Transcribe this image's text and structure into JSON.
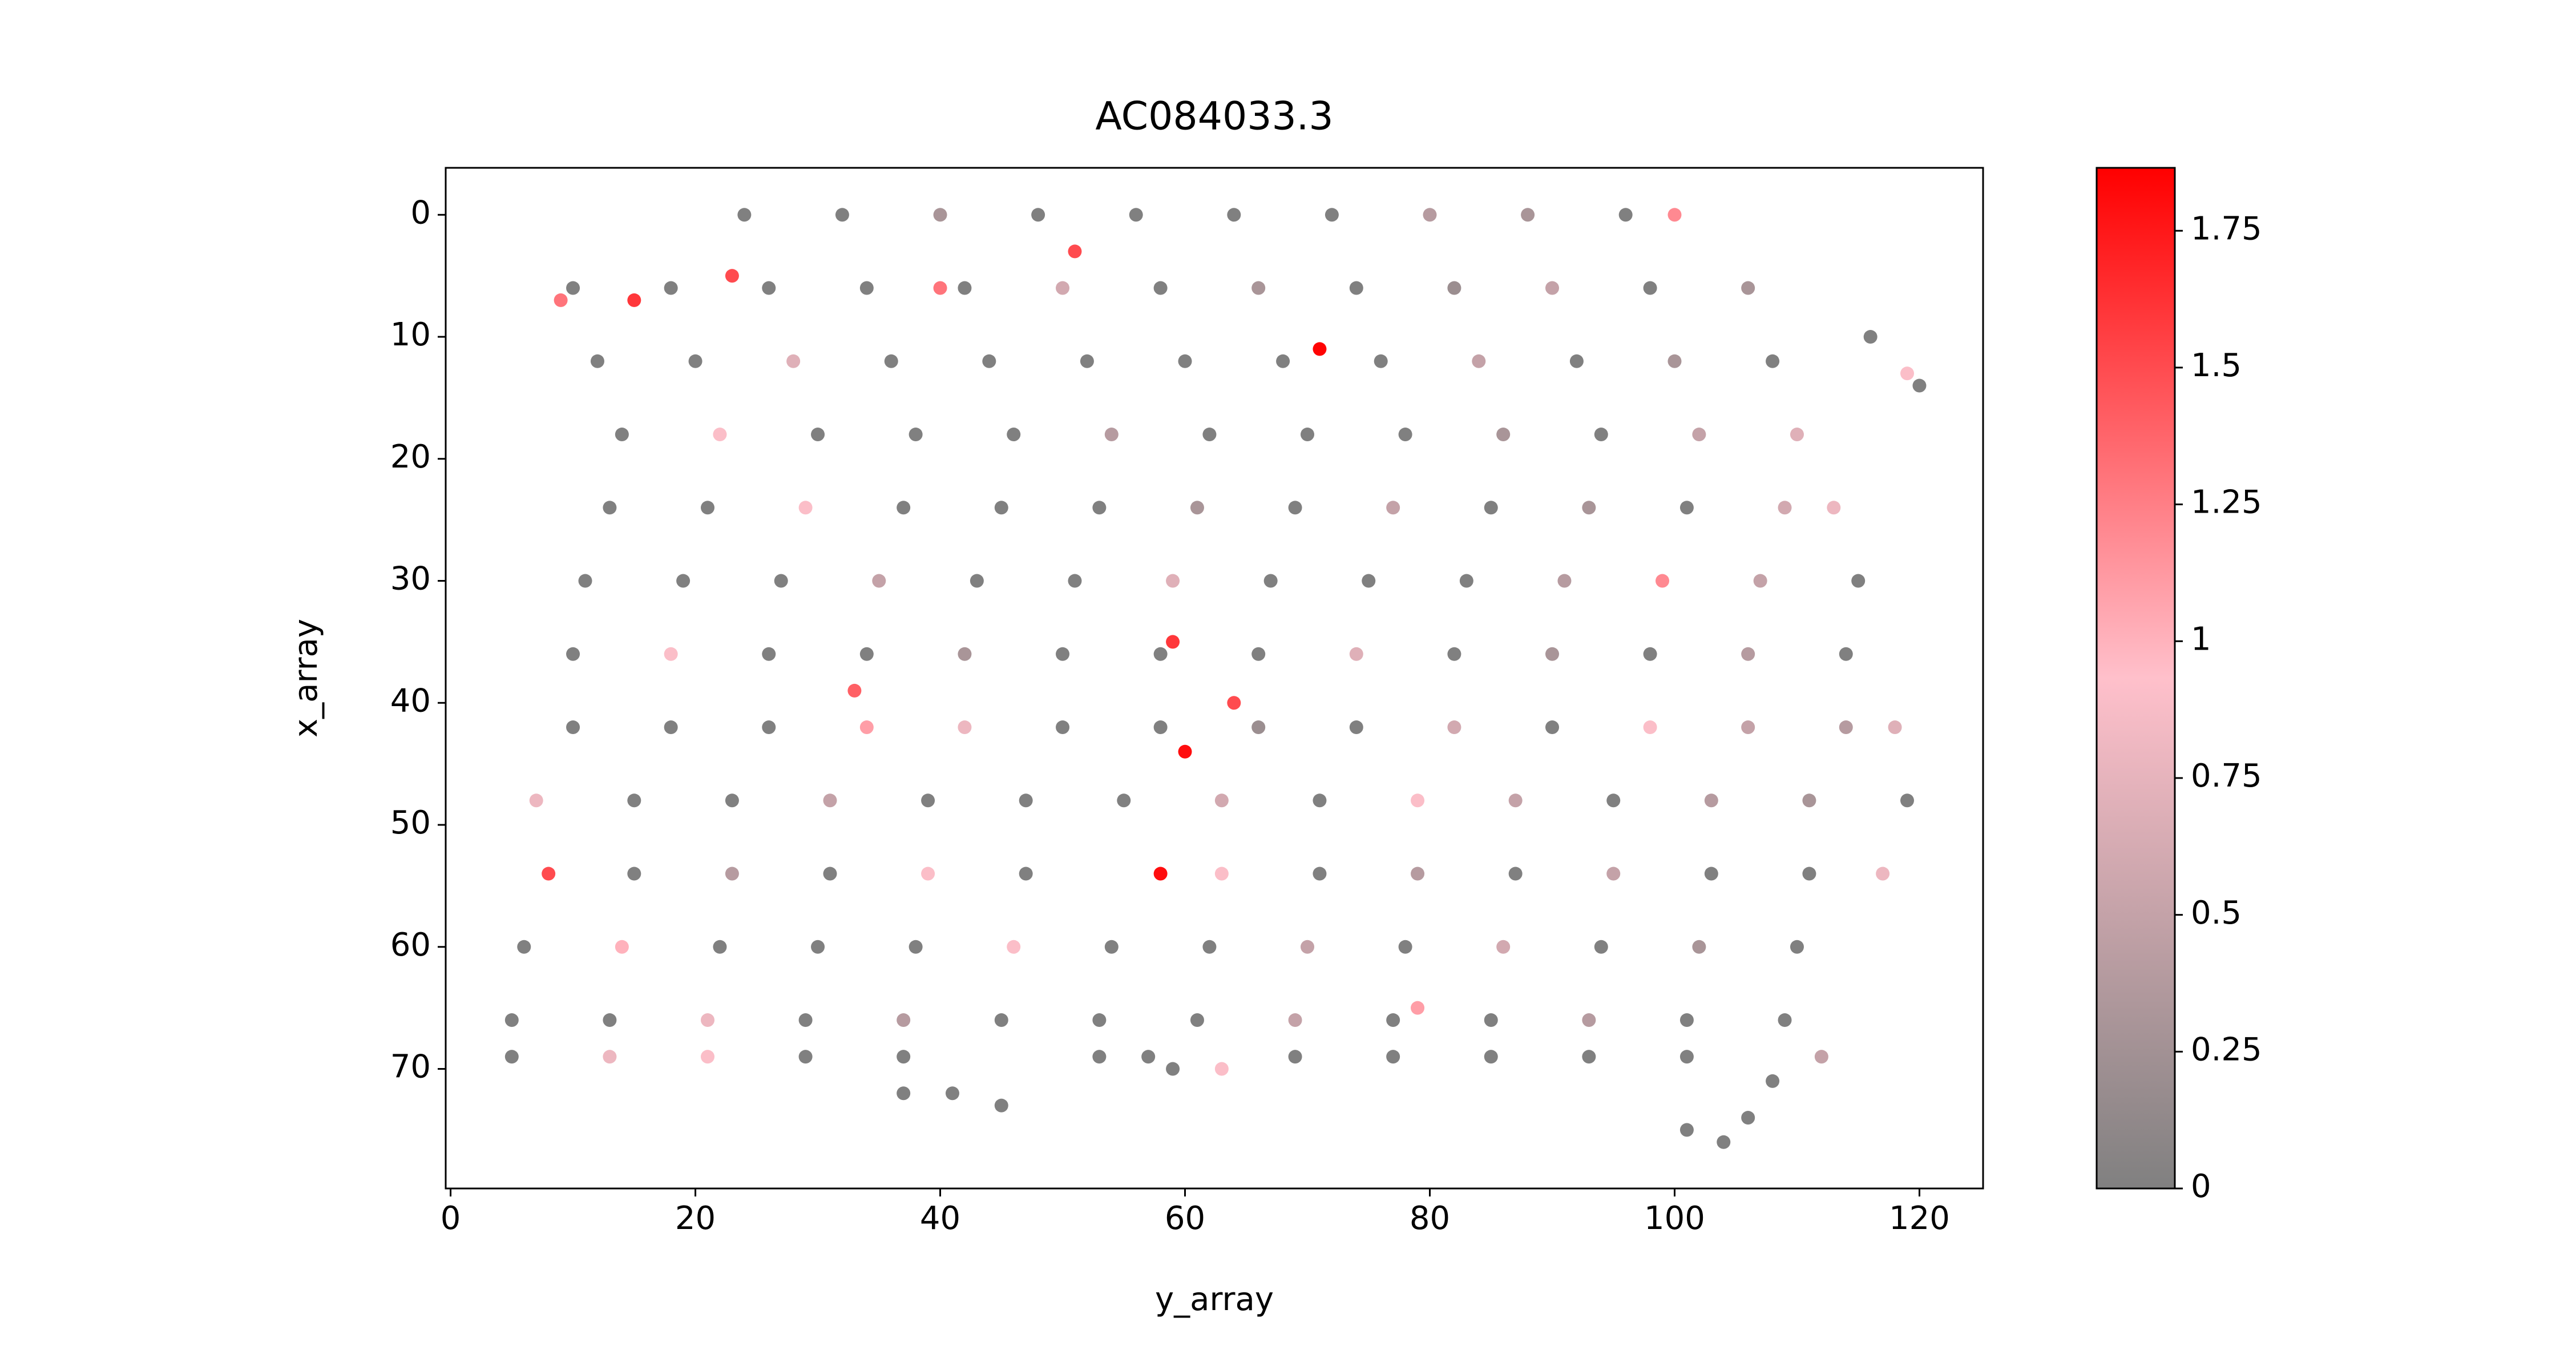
{
  "chart_data": {
    "type": "scatter",
    "title": "AC084033.3",
    "xlabel": "y_array",
    "ylabel": "x_array",
    "xlim": [
      -0.4,
      125.2
    ],
    "xticks": [
      0,
      20,
      40,
      60,
      80,
      100,
      120
    ],
    "ylim": [
      79.8,
      -3.85
    ],
    "yticks": [
      0,
      10,
      20,
      30,
      40,
      50,
      60,
      70
    ],
    "clim": [
      0,
      1.865
    ],
    "cticks": [
      0,
      0.25,
      0.5,
      0.75,
      1,
      1.25,
      1.5,
      1.75
    ],
    "colormap": [
      "#808080",
      "#ffc0cb",
      "#ff0000"
    ],
    "x": [
      24,
      32,
      40,
      48,
      56,
      64,
      72,
      80,
      88,
      96,
      100,
      51,
      23,
      10,
      18,
      26,
      34,
      42,
      50,
      58,
      66,
      74,
      82,
      90,
      98,
      106,
      40,
      9,
      15,
      71,
      116,
      12,
      20,
      28,
      36,
      44,
      52,
      60,
      68,
      76,
      84,
      92,
      100,
      108,
      119,
      120,
      14,
      22,
      30,
      38,
      46,
      54,
      62,
      70,
      78,
      86,
      94,
      102,
      110,
      13,
      21,
      29,
      37,
      45,
      53,
      61,
      69,
      77,
      85,
      93,
      101,
      109,
      113,
      11,
      19,
      27,
      35,
      43,
      51,
      59,
      67,
      75,
      83,
      91,
      99,
      107,
      115,
      59,
      10,
      18,
      26,
      34,
      42,
      50,
      58,
      66,
      74,
      82,
      90,
      98,
      106,
      114,
      33,
      64,
      10,
      18,
      26,
      34,
      42,
      50,
      58,
      66,
      74,
      82,
      90,
      98,
      106,
      114,
      118,
      60,
      7,
      15,
      23,
      31,
      39,
      47,
      55,
      63,
      71,
      79,
      87,
      95,
      103,
      111,
      119,
      8,
      15,
      23,
      31,
      39,
      47,
      58,
      63,
      71,
      79,
      87,
      95,
      103,
      111,
      117,
      6,
      14,
      22,
      30,
      38,
      46,
      54,
      62,
      70,
      78,
      86,
      94,
      102,
      110,
      79,
      5,
      13,
      21,
      29,
      37,
      45,
      53,
      61,
      69,
      77,
      85,
      93,
      101,
      109,
      5,
      13,
      21,
      29,
      37,
      53,
      57,
      69,
      77,
      85,
      93,
      101,
      112,
      59,
      63,
      108,
      37,
      41,
      45,
      106,
      101,
      104
    ],
    "y": [
      0,
      0,
      0,
      0,
      0,
      0,
      0,
      0,
      0,
      0,
      0,
      3,
      5,
      6,
      6,
      6,
      6,
      6,
      6,
      6,
      6,
      6,
      6,
      6,
      6,
      6,
      6,
      7,
      7,
      11,
      10,
      12,
      12,
      12,
      12,
      12,
      12,
      12,
      12,
      12,
      12,
      12,
      12,
      12,
      13,
      14,
      18,
      18,
      18,
      18,
      18,
      18,
      18,
      18,
      18,
      18,
      18,
      18,
      18,
      24,
      24,
      24,
      24,
      24,
      24,
      24,
      24,
      24,
      24,
      24,
      24,
      24,
      24,
      30,
      30,
      30,
      30,
      30,
      30,
      30,
      30,
      30,
      30,
      30,
      30,
      30,
      30,
      35,
      36,
      36,
      36,
      36,
      36,
      36,
      36,
      36,
      36,
      36,
      36,
      36,
      36,
      36,
      39,
      40,
      42,
      42,
      42,
      42,
      42,
      42,
      42,
      42,
      42,
      42,
      42,
      42,
      42,
      42,
      42,
      44,
      48,
      48,
      48,
      48,
      48,
      48,
      48,
      48,
      48,
      48,
      48,
      48,
      48,
      48,
      48,
      54,
      54,
      54,
      54,
      54,
      54,
      54,
      54,
      54,
      54,
      54,
      54,
      54,
      54,
      54,
      60,
      60,
      60,
      60,
      60,
      60,
      60,
      60,
      60,
      60,
      60,
      60,
      60,
      60,
      65,
      66,
      66,
      66,
      66,
      66,
      66,
      66,
      66,
      66,
      66,
      66,
      66,
      66,
      66,
      69,
      69,
      69,
      69,
      69,
      69,
      69,
      69,
      69,
      69,
      69,
      69,
      69,
      70,
      70,
      71,
      72,
      72,
      73,
      74,
      75,
      76
    ],
    "values": [
      0,
      0,
      0.3,
      0,
      0,
      0,
      0,
      0.4,
      0.3,
      0,
      1.2,
      1.5,
      1.5,
      0,
      0,
      0,
      0,
      0,
      0.6,
      0,
      0.3,
      0,
      0.2,
      0.5,
      0,
      0.3,
      1.3,
      1.3,
      1.6,
      1.85,
      0,
      0,
      0,
      0.7,
      0,
      0,
      0,
      0,
      0,
      0,
      0.5,
      0,
      0.3,
      0,
      0.9,
      0,
      0,
      0.9,
      0,
      0,
      0,
      0.4,
      0,
      0,
      0,
      0.3,
      0,
      0.5,
      0.7,
      0,
      0,
      0.9,
      0,
      0,
      0,
      0.3,
      0,
      0.5,
      0,
      0.3,
      0,
      0.6,
      0.8,
      0,
      0,
      0,
      0.5,
      0,
      0,
      0.7,
      0,
      0,
      0,
      0.4,
      1.2,
      0.5,
      0,
      1.6,
      0,
      0.9,
      0,
      0,
      0.3,
      0,
      0,
      0,
      0.7,
      0,
      0.3,
      0,
      0.4,
      0,
      1.4,
      1.5,
      0,
      0,
      0,
      1.1,
      0.8,
      0,
      0,
      0.2,
      0,
      0.6,
      0,
      0.9,
      0.5,
      0.4,
      0.7,
      1.8,
      0.8,
      0,
      0,
      0.5,
      0,
      0,
      0,
      0.6,
      0,
      0.9,
      0.5,
      0,
      0.4,
      0.3,
      0,
      1.5,
      0,
      0.4,
      0,
      0.9,
      0,
      1.8,
      0.9,
      0,
      0.4,
      0,
      0.5,
      0,
      0,
      0.8,
      0,
      1,
      0,
      0,
      0,
      0.9,
      0,
      0,
      0.5,
      0,
      0.6,
      0,
      0.3,
      0,
      1.1,
      0,
      0,
      0.8,
      0,
      0.4,
      0,
      0,
      0,
      0.5,
      0,
      0,
      0.4,
      0,
      0,
      0,
      0.8,
      0.9,
      0,
      0,
      0,
      0,
      0,
      0,
      0,
      0,
      0,
      0.5,
      0,
      0.9,
      0,
      0,
      0,
      0,
      0,
      0,
      0
    ]
  }
}
